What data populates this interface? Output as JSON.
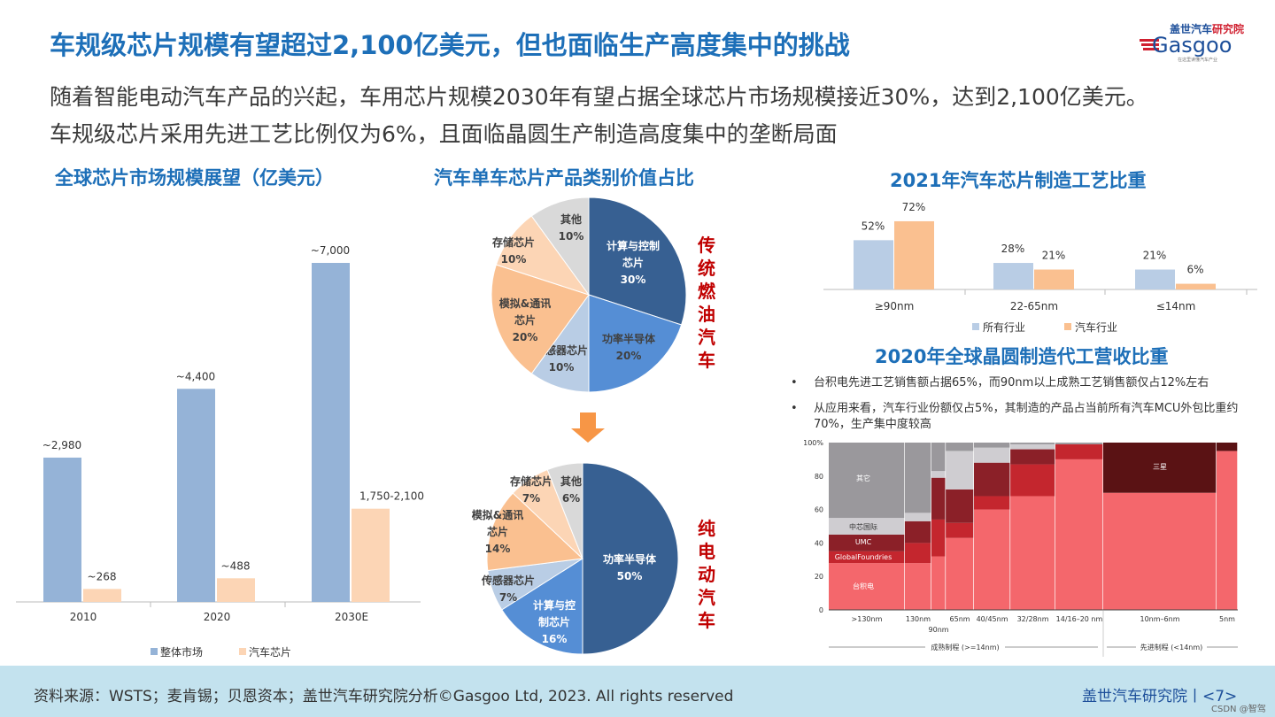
{
  "header": {
    "title": "车规级芯片规模有望超过2,100亿美元，但也面临生产高度集中的挑战",
    "subtitle_lines": [
      "随着智能电动汽车产品的兴起，车用芯片规模2030年有望占据全球芯片市场规模接近30%，达到2,100亿美元。",
      "车规级芯片采用先进工艺比例仅为6%，且面临晶圆生产制造高度集中的垄断局面"
    ]
  },
  "logo": {
    "text_cn": "盖世汽车研究院",
    "text_en": "Gasgoo",
    "tagline": "在这里读懂汽车产业"
  },
  "footer": {
    "source": "资料来源：WSTS；麦肯锡；贝恩资本；盖世汽车研究院分析©Gasgoo Ltd, 2023. All rights reserved",
    "org": "盖世汽车研究院丨<7>",
    "watermark": "CSDN @智驾"
  },
  "labels": {
    "ice": "传统燃油汽车",
    "ev": "纯电动汽车"
  },
  "bullets": [
    "台积电先进工艺销售额占据65%，而90nm以上成熟工艺销售额仅占12%左右",
    "从应用来看，汽车行业份额仅占5%，其制造的产品占当前所有汽车MCU外包比重约70%，生产集中度较高"
  ],
  "chart_data": [
    {
      "type": "bar",
      "title": "全球芯片市场规模展望（亿美元）",
      "categories": [
        "2010",
        "2020",
        "2030E"
      ],
      "series": [
        {
          "name": "整体市场",
          "values": [
            2980,
            4400,
            7000
          ],
          "labels": [
            "~2,980",
            "~4,400",
            "~7,000"
          ],
          "color": "#95b3d7"
        },
        {
          "name": "汽车芯片",
          "values": [
            268,
            488,
            1925
          ],
          "labels": [
            "~268",
            "~488",
            "1,750-2,100"
          ],
          "color": "#fcd5b5"
        }
      ],
      "ylim": [
        0,
        7000
      ],
      "legend": "bottom"
    },
    {
      "type": "pie",
      "title": "汽车单车芯片产品类别价值占比",
      "name": "传统燃油汽车",
      "slices": [
        {
          "label": "计算与控制芯片",
          "value": 30,
          "text": "30%",
          "color": "#376092"
        },
        {
          "label": "功率半导体",
          "value": 20,
          "text": "20%",
          "color": "#558ed5"
        },
        {
          "label": "传感器芯片",
          "value": 10,
          "text": "10%",
          "color": "#b9cde5"
        },
        {
          "label": "模拟&通讯芯片",
          "value": 20,
          "text": "20%",
          "color": "#fac090"
        },
        {
          "label": "存储芯片",
          "value": 10,
          "text": "10%",
          "color": "#fcd5b5"
        },
        {
          "label": "其他",
          "value": 10,
          "text": "10%",
          "color": "#d9d9d9"
        }
      ]
    },
    {
      "type": "pie",
      "name": "纯电动汽车",
      "slices": [
        {
          "label": "功率半导体",
          "value": 50,
          "text": "50%",
          "color": "#376092"
        },
        {
          "label": "计算与控制芯片",
          "value": 16,
          "text": "16%",
          "color": "#558ed5"
        },
        {
          "label": "传感器芯片",
          "value": 7,
          "text": "7%",
          "color": "#b9cde5"
        },
        {
          "label": "模拟&通讯芯片",
          "value": 14,
          "text": "14%",
          "color": "#fac090"
        },
        {
          "label": "存储芯片",
          "value": 7,
          "text": "7%",
          "color": "#fcd5b5"
        },
        {
          "label": "其他",
          "value": 6,
          "text": "6%",
          "color": "#d9d9d9"
        }
      ]
    },
    {
      "type": "bar",
      "title": "2021年汽车芯片制造工艺比重",
      "categories": [
        "≥90nm",
        "22-65nm",
        "≤14nm"
      ],
      "series": [
        {
          "name": "所有行业",
          "values": [
            52,
            28,
            21
          ],
          "color": "#b9cde5"
        },
        {
          "name": "汽车行业",
          "values": [
            72,
            21,
            6
          ],
          "color": "#fac090"
        }
      ],
      "ylim": [
        0,
        80
      ],
      "legend": "bottom"
    },
    {
      "type": "bar",
      "subtype": "marimekko",
      "title": "2020年全球晶圆制造代工营收比重",
      "yticks": [
        "0",
        "20",
        "40",
        "60",
        "80",
        "100%"
      ],
      "categories": [
        ">130nm",
        "130nm",
        "90nm",
        "65nm",
        "40/45nm",
        "32/28nm",
        "14/16–20 nm",
        "10nm–6nm",
        "5nm"
      ],
      "widths": [
        18.6,
        6.5,
        3.5,
        6.9,
        8.9,
        11,
        11.7,
        27.7,
        5.2
      ],
      "series": [
        {
          "name": "台积电",
          "color": "#f4676c",
          "values": [
            28,
            28,
            32,
            43,
            60,
            68,
            90,
            70,
            95
          ]
        },
        {
          "name": "GlobalFoundries",
          "color": "#c4262e",
          "values": [
            7,
            12,
            22,
            9,
            8,
            19,
            9,
            0,
            0
          ]
        },
        {
          "name": "UMC",
          "color": "#8b2028",
          "values": [
            10,
            13,
            25,
            20,
            20,
            9,
            0,
            0,
            0
          ]
        },
        {
          "name": "中芯国际",
          "color": "#cfcdd1",
          "values": [
            10,
            5,
            4,
            23,
            9,
            3,
            0,
            0,
            0
          ]
        },
        {
          "name": "三星",
          "color": "#5a1214",
          "values": [
            0,
            0,
            0,
            0,
            0,
            0,
            0,
            30,
            5
          ]
        },
        {
          "name": "其它",
          "color": "#9a989c",
          "values": [
            45,
            42,
            17,
            5,
            3,
            1,
            1,
            0,
            0
          ]
        }
      ],
      "groups": [
        {
          "label": "成熟制程 (>=14nm)"
        },
        {
          "label": "先进制程 (<14nm)"
        }
      ]
    }
  ]
}
